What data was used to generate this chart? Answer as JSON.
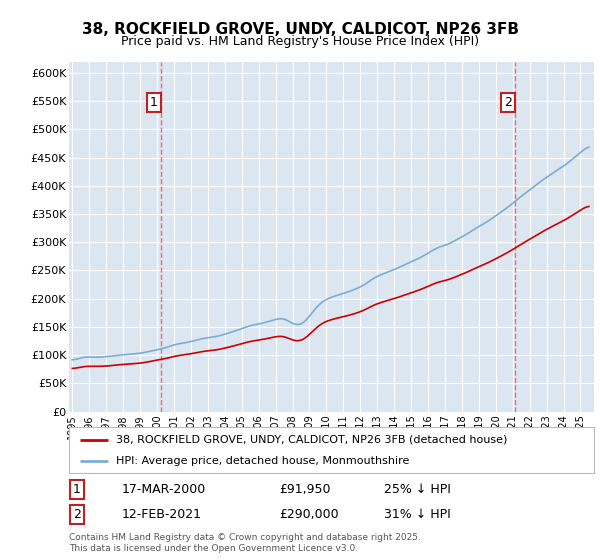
{
  "title": "38, ROCKFIELD GROVE, UNDY, CALDICOT, NP26 3FB",
  "subtitle": "Price paid vs. HM Land Registry's House Price Index (HPI)",
  "bg_color": "#dce6f1",
  "ylabel_ticks": [
    "£0",
    "£50K",
    "£100K",
    "£150K",
    "£200K",
    "£250K",
    "£300K",
    "£350K",
    "£400K",
    "£450K",
    "£500K",
    "£550K",
    "£600K"
  ],
  "ytick_vals": [
    0,
    50000,
    100000,
    150000,
    200000,
    250000,
    300000,
    350000,
    400000,
    450000,
    500000,
    550000,
    600000
  ],
  "ylim": [
    0,
    620000
  ],
  "xlim_start": 1994.8,
  "xlim_end": 2025.8,
  "marker1_x": 2000.21,
  "marker1_y": 91950,
  "marker1_label": "1",
  "marker1_date": "17-MAR-2000",
  "marker1_price": "£91,950",
  "marker1_hpi": "25% ↓ HPI",
  "marker2_x": 2021.12,
  "marker2_y": 290000,
  "marker2_label": "2",
  "marker2_date": "12-FEB-2021",
  "marker2_price": "£290,000",
  "marker2_hpi": "31% ↓ HPI",
  "legend_entry1": "38, ROCKFIELD GROVE, UNDY, CALDICOT, NP26 3FB (detached house)",
  "legend_entry2": "HPI: Average price, detached house, Monmouthshire",
  "footnote": "Contains HM Land Registry data © Crown copyright and database right 2025.\nThis data is licensed under the Open Government Licence v3.0.",
  "red_color": "#cc0000",
  "blue_color": "#7aadd4",
  "vline_color": "#ff6666"
}
